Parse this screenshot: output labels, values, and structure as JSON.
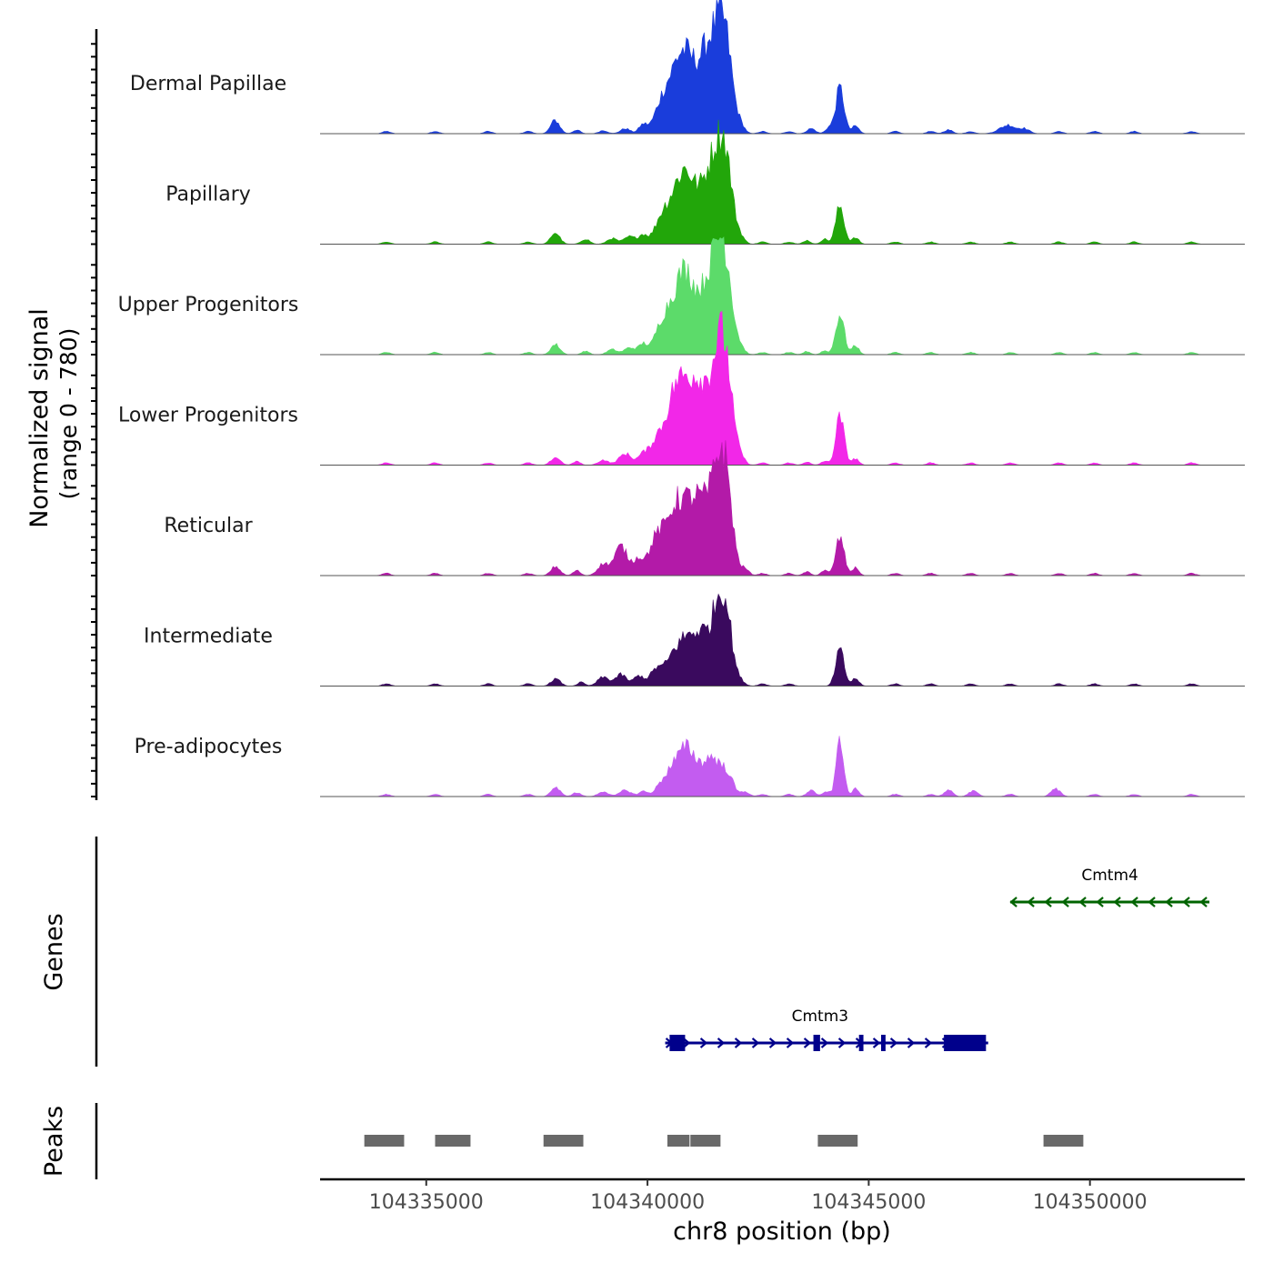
{
  "chart_data": {
    "type": "area",
    "title": "",
    "ylabel_line1": "Normalized signal",
    "ylabel_line2": "(range 0 - 780)",
    "ylim": [
      0,
      780
    ],
    "xlabel": "chr8 position (bp)",
    "xlim": [
      104332600,
      104353500
    ],
    "x_ticks": [
      104335000,
      104340000,
      104345000,
      104350000
    ],
    "x_tick_labels": [
      "104335000",
      "104340000",
      "104345000",
      "104350000"
    ],
    "background_noise_sites": [
      104334100,
      104335200,
      104336400,
      104337300,
      104338000,
      104341900,
      104342600,
      104343200,
      104345600,
      104346400,
      104347300,
      104348200,
      104349300,
      104350100,
      104351000,
      104352300
    ],
    "tracks": [
      {
        "name": "Dermal Papillae",
        "color": "#1A3DDB",
        "peaks": [
          {
            "center": 104337900,
            "width": 60,
            "height": 95
          },
          {
            "center": 104338400,
            "width": 50,
            "height": 30
          },
          {
            "center": 104339000,
            "width": 60,
            "height": 25
          },
          {
            "center": 104339500,
            "width": 70,
            "height": 40
          },
          {
            "center": 104339900,
            "width": 60,
            "height": 70
          },
          {
            "center": 104340300,
            "width": 100,
            "height": 190
          },
          {
            "center": 104340600,
            "width": 120,
            "height": 330
          },
          {
            "center": 104340900,
            "width": 130,
            "height": 520
          },
          {
            "center": 104341300,
            "width": 110,
            "height": 460
          },
          {
            "center": 104341600,
            "width": 110,
            "height": 670
          },
          {
            "center": 104341800,
            "width": 90,
            "height": 420
          },
          {
            "center": 104342100,
            "width": 60,
            "height": 60
          },
          {
            "center": 104343700,
            "width": 60,
            "height": 40
          },
          {
            "center": 104344100,
            "width": 50,
            "height": 45
          },
          {
            "center": 104344350,
            "width": 60,
            "height": 360
          },
          {
            "center": 104344700,
            "width": 50,
            "height": 60
          },
          {
            "center": 104346800,
            "width": 60,
            "height": 30
          },
          {
            "center": 104348100,
            "width": 110,
            "height": 55
          },
          {
            "center": 104348500,
            "width": 80,
            "height": 40
          }
        ]
      },
      {
        "name": "Papillary",
        "color": "#22A60A",
        "peaks": [
          {
            "center": 104337900,
            "width": 60,
            "height": 80
          },
          {
            "center": 104338600,
            "width": 60,
            "height": 40
          },
          {
            "center": 104339200,
            "width": 70,
            "height": 45
          },
          {
            "center": 104339600,
            "width": 80,
            "height": 60
          },
          {
            "center": 104339900,
            "width": 60,
            "height": 70
          },
          {
            "center": 104340300,
            "width": 100,
            "height": 160
          },
          {
            "center": 104340600,
            "width": 120,
            "height": 280
          },
          {
            "center": 104340900,
            "width": 120,
            "height": 480
          },
          {
            "center": 104341300,
            "width": 110,
            "height": 350
          },
          {
            "center": 104341600,
            "width": 110,
            "height": 640
          },
          {
            "center": 104341800,
            "width": 90,
            "height": 380
          },
          {
            "center": 104342100,
            "width": 60,
            "height": 50
          },
          {
            "center": 104343600,
            "width": 50,
            "height": 30
          },
          {
            "center": 104344000,
            "width": 50,
            "height": 40
          },
          {
            "center": 104344350,
            "width": 60,
            "height": 300
          },
          {
            "center": 104344700,
            "width": 50,
            "height": 50
          }
        ]
      },
      {
        "name": "Upper Progenitors",
        "color": "#5CDB6A",
        "peaks": [
          {
            "center": 104337900,
            "width": 60,
            "height": 70
          },
          {
            "center": 104338600,
            "width": 50,
            "height": 30
          },
          {
            "center": 104339200,
            "width": 70,
            "height": 40
          },
          {
            "center": 104339600,
            "width": 80,
            "height": 55
          },
          {
            "center": 104339900,
            "width": 60,
            "height": 80
          },
          {
            "center": 104340300,
            "width": 100,
            "height": 180
          },
          {
            "center": 104340600,
            "width": 120,
            "height": 320
          },
          {
            "center": 104340900,
            "width": 120,
            "height": 540
          },
          {
            "center": 104341300,
            "width": 110,
            "height": 380
          },
          {
            "center": 104341600,
            "width": 110,
            "height": 690
          },
          {
            "center": 104341800,
            "width": 90,
            "height": 400
          },
          {
            "center": 104342100,
            "width": 60,
            "height": 50
          },
          {
            "center": 104343600,
            "width": 50,
            "height": 25
          },
          {
            "center": 104344000,
            "width": 50,
            "height": 30
          },
          {
            "center": 104344350,
            "width": 60,
            "height": 320
          },
          {
            "center": 104344700,
            "width": 50,
            "height": 70
          }
        ]
      },
      {
        "name": "Lower Progenitors",
        "color": "#F227E8",
        "peaks": [
          {
            "center": 104337900,
            "width": 60,
            "height": 50
          },
          {
            "center": 104338400,
            "width": 50,
            "height": 30
          },
          {
            "center": 104339000,
            "width": 70,
            "height": 40
          },
          {
            "center": 104339500,
            "width": 90,
            "height": 90
          },
          {
            "center": 104339900,
            "width": 70,
            "height": 80
          },
          {
            "center": 104340200,
            "width": 90,
            "height": 180
          },
          {
            "center": 104340600,
            "width": 120,
            "height": 520
          },
          {
            "center": 104340900,
            "width": 110,
            "height": 400
          },
          {
            "center": 104341200,
            "width": 120,
            "height": 540
          },
          {
            "center": 104341600,
            "width": 110,
            "height": 780
          },
          {
            "center": 104341800,
            "width": 90,
            "height": 460
          },
          {
            "center": 104342100,
            "width": 60,
            "height": 60
          },
          {
            "center": 104343600,
            "width": 50,
            "height": 25
          },
          {
            "center": 104344000,
            "width": 50,
            "height": 30
          },
          {
            "center": 104344350,
            "width": 60,
            "height": 380
          },
          {
            "center": 104344700,
            "width": 50,
            "height": 50
          }
        ]
      },
      {
        "name": "Reticular",
        "color": "#B31AA8",
        "peaks": [
          {
            "center": 104337900,
            "width": 60,
            "height": 60
          },
          {
            "center": 104338400,
            "width": 50,
            "height": 40
          },
          {
            "center": 104339000,
            "width": 80,
            "height": 90
          },
          {
            "center": 104339400,
            "width": 90,
            "height": 230
          },
          {
            "center": 104339800,
            "width": 80,
            "height": 130
          },
          {
            "center": 104340200,
            "width": 100,
            "height": 280
          },
          {
            "center": 104340600,
            "width": 120,
            "height": 480
          },
          {
            "center": 104340900,
            "width": 110,
            "height": 330
          },
          {
            "center": 104341200,
            "width": 120,
            "height": 500
          },
          {
            "center": 104341600,
            "width": 110,
            "height": 760
          },
          {
            "center": 104341800,
            "width": 90,
            "height": 440
          },
          {
            "center": 104342200,
            "width": 60,
            "height": 50
          },
          {
            "center": 104343600,
            "width": 50,
            "height": 30
          },
          {
            "center": 104344000,
            "width": 50,
            "height": 40
          },
          {
            "center": 104344350,
            "width": 60,
            "height": 300
          },
          {
            "center": 104344700,
            "width": 50,
            "height": 60
          }
        ]
      },
      {
        "name": "Intermediate",
        "color": "#3A0A5E",
        "peaks": [
          {
            "center": 104337900,
            "width": 60,
            "height": 45
          },
          {
            "center": 104338500,
            "width": 50,
            "height": 30
          },
          {
            "center": 104339000,
            "width": 80,
            "height": 70
          },
          {
            "center": 104339400,
            "width": 80,
            "height": 90
          },
          {
            "center": 104339800,
            "width": 70,
            "height": 80
          },
          {
            "center": 104340200,
            "width": 90,
            "height": 130
          },
          {
            "center": 104340600,
            "width": 110,
            "height": 240
          },
          {
            "center": 104340900,
            "width": 100,
            "height": 290
          },
          {
            "center": 104341200,
            "width": 100,
            "height": 350
          },
          {
            "center": 104341600,
            "width": 110,
            "height": 620
          },
          {
            "center": 104341800,
            "width": 80,
            "height": 320
          },
          {
            "center": 104342100,
            "width": 60,
            "height": 40
          },
          {
            "center": 104344350,
            "width": 60,
            "height": 280
          },
          {
            "center": 104344700,
            "width": 50,
            "height": 60
          }
        ]
      },
      {
        "name": "Pre-adipocytes",
        "color": "#C35CF0",
        "peaks": [
          {
            "center": 104337900,
            "width": 60,
            "height": 60
          },
          {
            "center": 104338400,
            "width": 60,
            "height": 30
          },
          {
            "center": 104339000,
            "width": 70,
            "height": 40
          },
          {
            "center": 104339500,
            "width": 80,
            "height": 50
          },
          {
            "center": 104339900,
            "width": 60,
            "height": 40
          },
          {
            "center": 104340300,
            "width": 90,
            "height": 70
          },
          {
            "center": 104340600,
            "width": 110,
            "height": 220
          },
          {
            "center": 104340900,
            "width": 100,
            "height": 300
          },
          {
            "center": 104341200,
            "width": 110,
            "height": 180
          },
          {
            "center": 104341500,
            "width": 100,
            "height": 260
          },
          {
            "center": 104341800,
            "width": 80,
            "height": 160
          },
          {
            "center": 104342200,
            "width": 60,
            "height": 40
          },
          {
            "center": 104343700,
            "width": 60,
            "height": 50
          },
          {
            "center": 104344050,
            "width": 50,
            "height": 40
          },
          {
            "center": 104344350,
            "width": 50,
            "height": 480
          },
          {
            "center": 104344700,
            "width": 50,
            "height": 60
          },
          {
            "center": 104346800,
            "width": 60,
            "height": 50
          },
          {
            "center": 104347400,
            "width": 60,
            "height": 30
          },
          {
            "center": 104349200,
            "width": 60,
            "height": 50
          }
        ]
      }
    ],
    "genes_label": "Genes",
    "genes": [
      {
        "name": "Cmtm4",
        "strand": "-",
        "color": "#006400",
        "start": 104348200,
        "end": 104352700,
        "exons": []
      },
      {
        "name": "Cmtm3",
        "strand": "+",
        "color": "#00008B",
        "start": 104340400,
        "end": 104347700,
        "exons": [
          {
            "start": 104340500,
            "end": 104340850
          },
          {
            "start": 104343750,
            "end": 104343900
          },
          {
            "start": 104344780,
            "end": 104344880
          },
          {
            "start": 104345280,
            "end": 104345380
          },
          {
            "start": 104346700,
            "end": 104347650
          }
        ]
      }
    ],
    "peaks_label": "Peaks",
    "peak_regions": [
      {
        "start": 104333600,
        "end": 104334500
      },
      {
        "start": 104335200,
        "end": 104336000
      },
      {
        "start": 104337650,
        "end": 104338550
      },
      {
        "start": 104340450,
        "end": 104340950
      },
      {
        "start": 104340970,
        "end": 104341650
      },
      {
        "start": 104343850,
        "end": 104344750
      },
      {
        "start": 104348950,
        "end": 104349850
      }
    ],
    "peak_region_color": "#696969"
  }
}
